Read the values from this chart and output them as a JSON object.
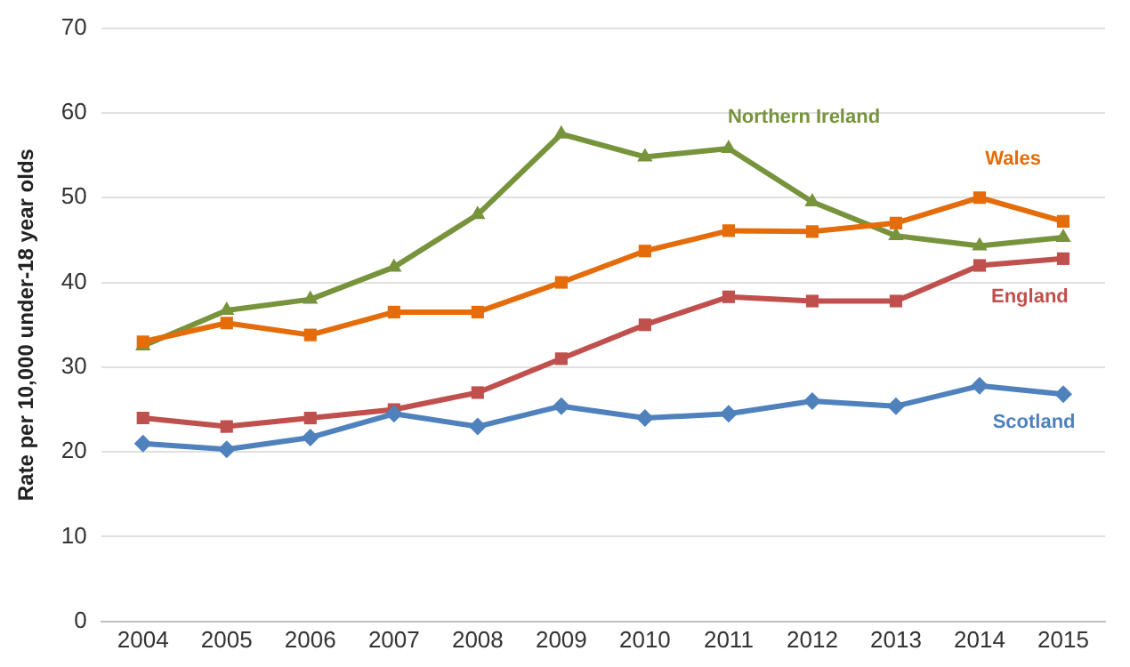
{
  "chart_data": {
    "type": "line",
    "ylabel": "Rate per 10,000 under-18 year olds",
    "categories": [
      "2004",
      "2005",
      "2006",
      "2007",
      "2008",
      "2009",
      "2010",
      "2011",
      "2012",
      "2013",
      "2014",
      "2015"
    ],
    "series": [
      {
        "name": "Northern Ireland",
        "color": "#77933c",
        "marker": "triangle",
        "values": [
          32.5,
          36.7,
          38,
          41.8,
          48,
          57.5,
          54.8,
          55.8,
          49.5,
          45.5,
          44.3,
          45.3
        ]
      },
      {
        "name": "Wales",
        "color": "#e46c0a",
        "marker": "square",
        "values": [
          33,
          35.2,
          33.8,
          36.5,
          36.5,
          40,
          43.7,
          46.1,
          46,
          47,
          50,
          47.2
        ]
      },
      {
        "name": "England",
        "color": "#c0504d",
        "marker": "square",
        "values": [
          24,
          23,
          24,
          25,
          27,
          31,
          35,
          38.3,
          37.8,
          37.8,
          42,
          42.8
        ]
      },
      {
        "name": "Scotland",
        "color": "#4f81bd",
        "marker": "diamond",
        "values": [
          21,
          20.3,
          21.7,
          24.5,
          23,
          25.4,
          24,
          24.5,
          26,
          25.4,
          27.8,
          26.8
        ]
      }
    ],
    "ylim": [
      0,
      70
    ],
    "yticks": [
      0,
      10,
      20,
      30,
      40,
      50,
      60,
      70
    ],
    "grid": "y",
    "legend": false,
    "line_style": "solid"
  }
}
